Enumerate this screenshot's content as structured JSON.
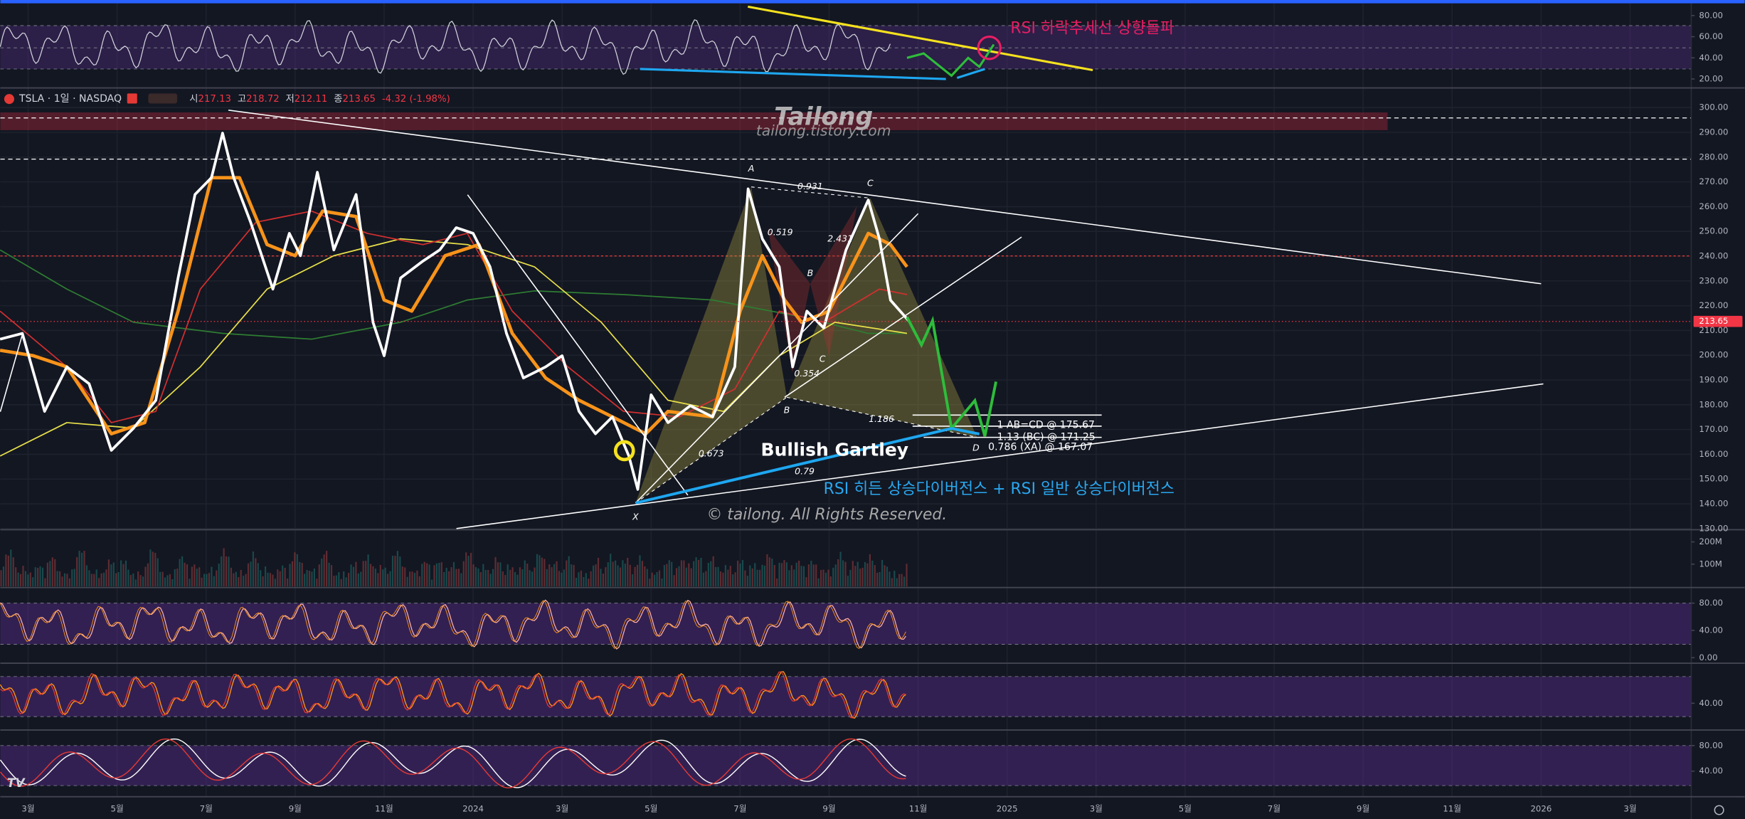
{
  "chart_data": {
    "type": "line",
    "symbol": "TSLA · 1일 · NASDAQ",
    "ohlc": [
      {
        "label": "시",
        "value": 217.13
      },
      {
        "label": "고",
        "value": 218.72
      },
      {
        "label": "저",
        "value": 212.11
      },
      {
        "label": "종",
        "value": 213.65
      }
    ],
    "change": "-4.32 (-1.98%)",
    "watermark": "Tailong",
    "watermark_url": "tailong.tistory.com",
    "copyright": "© tailong. All Rights Reserved.",
    "annotations": {
      "rsi_breakout": "RSI 하락추세선 상향돌파",
      "pattern": "Bullish Gartley",
      "divergence": "RSI 히든 상승다이버전스 + RSI 일반 상승다이버전스"
    },
    "gartley": {
      "point_labels": [
        "A",
        "C",
        "B",
        "B",
        "C",
        "X",
        "D"
      ],
      "ratios": [
        0.931,
        0.519,
        2.431,
        0.354,
        1.186,
        0.673,
        0.79
      ],
      "levels": [
        "1 AB=CD @ 175.67",
        "1.13 (BC) @ 171.25",
        "0.786 (XA) @ 167.07"
      ]
    },
    "xlim": [
      -10.625,
      27.375
    ],
    "xticks": [
      {
        "value": -10,
        "label": "3월"
      },
      {
        "value": -8,
        "label": "5월"
      },
      {
        "value": -6,
        "label": "7월"
      },
      {
        "value": -4,
        "label": "9월"
      },
      {
        "value": -2,
        "label": "11월"
      },
      {
        "value": 0,
        "label": "2024"
      },
      {
        "value": 2,
        "label": "3월"
      },
      {
        "value": 4,
        "label": "5월"
      },
      {
        "value": 6,
        "label": "7월"
      },
      {
        "value": 8,
        "label": "9월"
      },
      {
        "value": 10,
        "label": "11월"
      },
      {
        "value": 12,
        "label": "2025"
      },
      {
        "value": 14,
        "label": "3월"
      },
      {
        "value": 16,
        "label": "5월"
      },
      {
        "value": 18,
        "label": "7월"
      },
      {
        "value": 20,
        "label": "9월"
      },
      {
        "value": 22,
        "label": "11월"
      },
      {
        "value": 24,
        "label": "2026"
      },
      {
        "value": 26,
        "label": "3월"
      }
    ],
    "ylim": [
      130,
      307.5
    ],
    "yticks": [
      {
        "value": 130,
        "label": "130.00"
      },
      {
        "value": 140,
        "label": "140.00"
      },
      {
        "value": 150,
        "label": "150.00"
      },
      {
        "value": 160,
        "label": "160.00"
      },
      {
        "value": 170,
        "label": "170.00"
      },
      {
        "value": 180,
        "label": "180.00"
      },
      {
        "value": 190,
        "label": "190.00"
      },
      {
        "value": 200,
        "label": "200.00"
      },
      {
        "value": 210,
        "label": "210.00"
      },
      {
        "value": 220,
        "label": "220.00"
      },
      {
        "value": 230,
        "label": "230.00"
      },
      {
        "value": 240,
        "label": "240.00"
      },
      {
        "value": 250,
        "label": "250.00"
      },
      {
        "value": 260,
        "label": "260.00"
      },
      {
        "value": 270,
        "label": "270.00"
      },
      {
        "value": 280,
        "label": "280.00"
      },
      {
        "value": 290,
        "label": "290.00"
      },
      {
        "value": 300,
        "label": "300.00"
      }
    ],
    "series": [
      {
        "color": "#2e7d32",
        "x": [
          -10.63,
          -9.13,
          -7.63,
          -5.63,
          -3.63,
          -1.63,
          -0.13,
          1.38,
          3.38,
          5.38,
          7.38,
          8.88,
          9.75
        ],
        "values": [
          242.5,
          226.7,
          213.3,
          208.8,
          206.5,
          213.3,
          222.3,
          226,
          224.5,
          222.3,
          215.5,
          208.8,
          208.8
        ]
      },
      {
        "color": "#e8e04a",
        "x": [
          -10.63,
          -9.13,
          -7.63,
          -6.13,
          -4.63,
          -3.13,
          -1.63,
          -0.13,
          1.38,
          2.88,
          4.38,
          5.63,
          6.88,
          8.13,
          9.75
        ],
        "values": [
          159.3,
          172.8,
          170.6,
          195.3,
          226.7,
          240.2,
          247,
          244.7,
          235.7,
          213.3,
          181.8,
          177.3,
          199.8,
          213.3,
          208.8
        ]
      },
      {
        "color": "#d32f2f",
        "x": [
          -10.63,
          -9.13,
          -8.13,
          -7.13,
          -6.13,
          -4.88,
          -3.63,
          -2.38,
          -1.13,
          -0.13,
          0.88,
          2.13,
          3.38,
          4.63,
          5.88,
          6.88,
          7.88,
          9.13,
          9.75
        ],
        "values": [
          217.8,
          195.3,
          172.8,
          177.3,
          226.7,
          253.7,
          258.2,
          249.2,
          244.7,
          249.2,
          217.8,
          195.3,
          177.3,
          175.1,
          186.3,
          217.8,
          213.3,
          226.7,
          224.5
        ]
      },
      {
        "color": "#f7931a",
        "x": [
          -10.63,
          -9.88,
          -9.13,
          -8.13,
          -7.38,
          -6.63,
          -5.88,
          -5.25,
          -4.63,
          -4,
          -3.38,
          -2.63,
          -2,
          -1.38,
          -0.63,
          0.13,
          0.88,
          1.63,
          2.38,
          3.13,
          3.88,
          4.38,
          5.38,
          6,
          6.5,
          7,
          7.38,
          8,
          8.88,
          9.38,
          9.75
        ],
        "values": [
          202,
          199.8,
          195.3,
          168.3,
          172.8,
          217.8,
          271.7,
          271.7,
          244.7,
          240.2,
          258.2,
          256,
          222.3,
          217.8,
          240.2,
          244.7,
          208.8,
          190.8,
          181.8,
          175.1,
          168.3,
          177.3,
          175.1,
          217.8,
          240.2,
          222.3,
          213.3,
          217.8,
          249.2,
          244.7,
          235.7
        ]
      },
      {
        "color": "#ffffff",
        "x": [
          -10.63,
          -10.13,
          -9.63,
          -9.13,
          -8.63,
          -8.13,
          -7.63,
          -7.13,
          -6.63,
          -6.25,
          -5.88,
          -5.63,
          -5.38,
          -5,
          -4.5,
          -4.13,
          -3.88,
          -3.5,
          -3.13,
          -2.63,
          -2.25,
          -2,
          -1.63,
          -1.13,
          -0.75,
          -0.38,
          0,
          0.38,
          0.75,
          1.13,
          1.63,
          2,
          2.38,
          2.75,
          3.13,
          3.5,
          3.7,
          4,
          4.38,
          4.88,
          5.38,
          5.88,
          6.18,
          6.5,
          6.88,
          7.18,
          7.5,
          7.88,
          8.38,
          8.88,
          9.13,
          9.38,
          9.8
        ],
        "values": [
          206.5,
          208.8,
          177.3,
          195.3,
          188.5,
          161.6,
          170.6,
          181.8,
          231.2,
          264.9,
          271.7,
          289.7,
          271.7,
          253.7,
          226.7,
          249.2,
          240.2,
          273.9,
          242.5,
          264.9,
          213.3,
          199.8,
          231.2,
          238,
          242.5,
          251.5,
          249.2,
          235.7,
          208.8,
          190.8,
          195.3,
          199.8,
          177.3,
          168.3,
          175.1,
          159.3,
          145.8,
          184,
          172.8,
          179.6,
          175.1,
          195.3,
          267.2,
          247,
          235.7,
          195.3,
          217.8,
          211,
          242.5,
          262.7,
          247,
          222.2,
          213.65
        ]
      }
    ],
    "rsi_pane": {
      "ylim": [
        12.6,
        90.5
      ],
      "yticks": [
        {
          "value": 20,
          "label": "20.00"
        },
        {
          "value": 40,
          "label": "40.00"
        },
        {
          "value": 60,
          "label": "60.00"
        },
        {
          "value": 80,
          "label": "80.00"
        }
      ]
    },
    "volume_pane": {
      "ylim": [
        0,
        245000000
      ],
      "yticks": [
        {
          "value": 100000000,
          "label": "100M"
        },
        {
          "value": 200000000,
          "label": "200M"
        }
      ]
    },
    "osc1_pane": {
      "ylim": [
        -6.5,
        99.6
      ],
      "yticks": [
        {
          "value": 0,
          "label": "0.00"
        },
        {
          "value": 40,
          "label": "40.00"
        },
        {
          "value": 80,
          "label": "80.00"
        }
      ]
    },
    "osc2_pane": {
      "ylim": [
        1.7,
        98.3
      ],
      "yticks": [
        {
          "value": 40,
          "label": "40.00"
        }
      ]
    },
    "osc3_pane": {
      "ylim": [
        1.7,
        100.9
      ],
      "yticks": [
        {
          "value": 40,
          "label": "40.00"
        },
        {
          "value": 80,
          "label": "80.00"
        }
      ]
    }
  }
}
